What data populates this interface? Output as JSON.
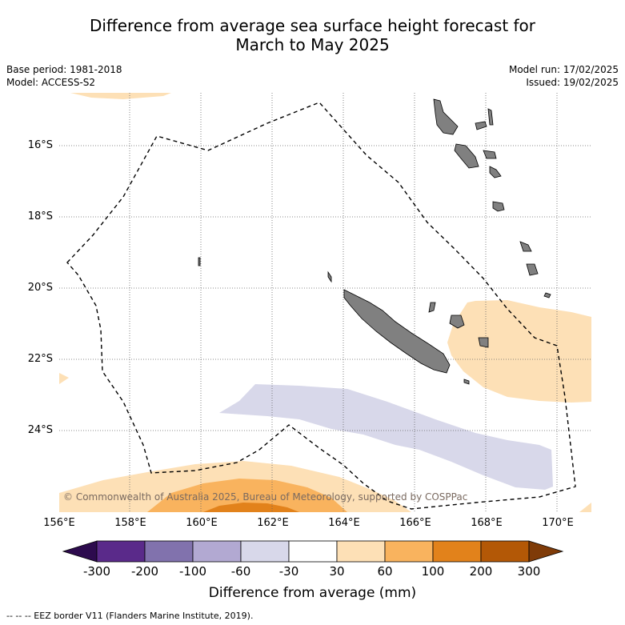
{
  "title_line1": "Difference from average sea surface height forecast for",
  "title_line2": "March to May 2025",
  "base_period": "Base period: 1981-2018",
  "model": "Model: ACCESS-S2",
  "model_run": "Model run: 17/02/2025",
  "issued": "Issued: 19/02/2025",
  "lat_labels": [
    "16°S",
    "18°S",
    "20°S",
    "22°S",
    "24°S"
  ],
  "lon_labels": [
    "156°E",
    "158°E",
    "160°E",
    "162°E",
    "164°E",
    "166°E",
    "168°E",
    "170°E"
  ],
  "copyright": "© Commonwealth of Australia 2025, Bureau of Meteorology, supported by COSPPac",
  "colorbar": {
    "labels": [
      "-300",
      "-200",
      "-100",
      "-60",
      "-30",
      "30",
      "60",
      "100",
      "200",
      "300"
    ],
    "colors": [
      "#2d0b4e",
      "#5a2a8a",
      "#8172ad",
      "#b2a9d2",
      "#d8d8ea",
      "#ffffff",
      "#fde0b6",
      "#f9b35e",
      "#e2821b",
      "#b35806",
      "#7f3b08"
    ],
    "title": "Difference from average (mm)"
  },
  "footnote": "--  --  -- EEZ border V11 (Flanders Marine Institute, 2019)."
}
